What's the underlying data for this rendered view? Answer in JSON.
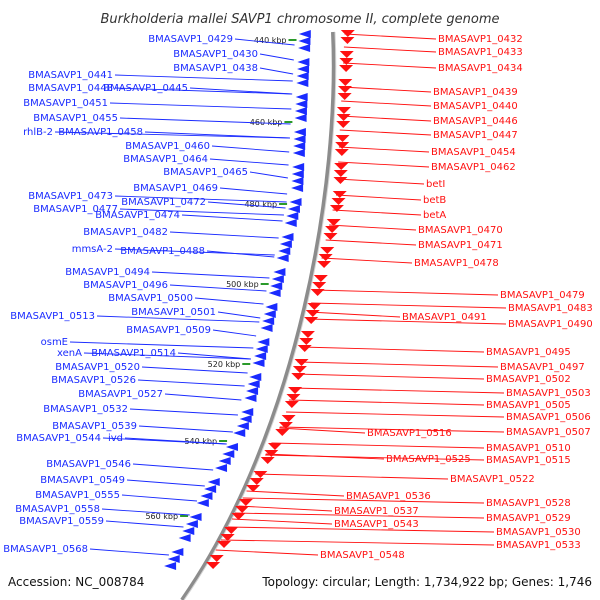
{
  "title": "Burkholderia mallei SAVP1 chromosome II, complete genome",
  "footer": {
    "accession": "Accession: NC_008784",
    "summary": "Topology: circular; Length: 1,734,922 bp; Genes: 1,746"
  },
  "colors": {
    "reverse_strand": "#1a2bff",
    "forward_strand": "#ff1111",
    "backbone": "#8c8c8c",
    "tick": "#2a9a2a"
  },
  "scale_ticks": [
    "440 kbp",
    "460 kbp",
    "480 kbp",
    "500 kbp",
    "520 kbp",
    "540 kbp",
    "560 kbp"
  ],
  "left_labels": [
    "BMASAVP1_0429",
    "BMASAVP1_0430",
    "BMASAVP1_0438",
    "BMASAVP1_0441",
    "BMASAVP1_0448",
    "BMASAVP1_0445",
    "BMASAVP1_0451",
    "BMASAVP1_0455",
    "rhlB-2",
    "BMASAVP1_0458",
    "BMASAVP1_0460",
    "BMASAVP1_0464",
    "BMASAVP1_0465",
    "BMASAVP1_0469",
    "BMASAVP1_0473",
    "BMASAVP1_0472",
    "BMASAVP1_0477",
    "BMASAVP1_0474",
    "BMASAVP1_0482",
    "mmsA-2",
    "BMASAVP1_0488",
    "BMASAVP1_0494",
    "BMASAVP1_0496",
    "BMASAVP1_0500",
    "BMASAVP1_0513",
    "BMASAVP1_0501",
    "BMASAVP1_0509",
    "osmE",
    "xenA",
    "BMASAVP1_0514",
    "BMASAVP1_0520",
    "BMASAVP1_0526",
    "BMASAVP1_0527",
    "BMASAVP1_0532",
    "BMASAVP1_0539",
    "BMASAVP1_0544",
    "ivd",
    "BMASAVP1_0546",
    "BMASAVP1_0549",
    "BMASAVP1_0555",
    "BMASAVP1_0558",
    "BMASAVP1_0559",
    "BMASAVP1_0568"
  ],
  "right_labels": [
    "BMASAVP1_0432",
    "BMASAVP1_0433",
    "BMASAVP1_0434",
    "BMASAVP1_0439",
    "BMASAVP1_0440",
    "BMASAVP1_0446",
    "BMASAVP1_0447",
    "BMASAVP1_0454",
    "BMASAVP1_0462",
    "betI",
    "betB",
    "betA",
    "BMASAVP1_0470",
    "BMASAVP1_0471",
    "BMASAVP1_0478",
    "BMASAVP1_0479",
    "BMASAVP1_0483",
    "BMASAVP1_0491",
    "BMASAVP1_0490",
    "BMASAVP1_0495",
    "BMASAVP1_0497",
    "BMASAVP1_0502",
    "BMASAVP1_0503",
    "BMASAVP1_0505",
    "BMASAVP1_0506",
    "BMASAVP1_0507",
    "BMASAVP1_0516",
    "BMASAVP1_0510",
    "BMASAVP1_0515",
    "BMASAVP1_0525",
    "BMASAVP1_0522",
    "BMASAVP1_0536",
    "BMASAVP1_0528",
    "BMASAVP1_0537",
    "BMASAVP1_0529",
    "BMASAVP1_0543",
    "BMASAVP1_0530",
    "BMASAVP1_0533",
    "BMASAVP1_0548"
  ]
}
